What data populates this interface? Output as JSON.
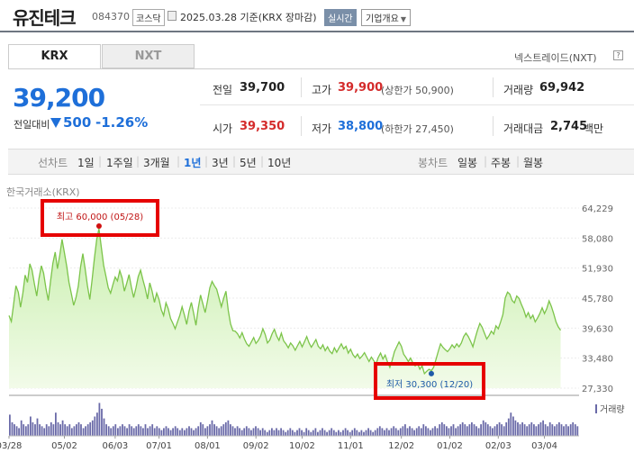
{
  "header": {
    "stock_name": "유진테크",
    "stock_code": "084370",
    "market": "코스닥",
    "date_text": "2025.03.28 기준(KRX 장마감)",
    "realtime": "실시간",
    "company_info": "기업개요"
  },
  "tabs": {
    "krx": "KRX",
    "nxt": "NXT",
    "nextrade": "넥스트레이드(NXT)",
    "help": "?"
  },
  "quote": {
    "price": "39,200",
    "change_label": "전일대비",
    "change": "500",
    "change_pct": "-1.26%"
  },
  "stats": {
    "prev_label": "전일",
    "prev": "39,700",
    "high_label": "고가",
    "high": "39,900",
    "upper_limit": "(상한가 50,900)",
    "volume_label": "거래량",
    "volume": "69,942",
    "open_label": "시가",
    "open": "39,350",
    "low_label": "저가",
    "low": "38,800",
    "lower_limit": "(하한가 27,450)",
    "amount_label": "거래대금",
    "amount": "2,745",
    "amount_unit": "백만"
  },
  "period": {
    "line_label": "선차트",
    "line_options": [
      "1일",
      "1주일",
      "3개월",
      "1년",
      "3년",
      "5년",
      "10년"
    ],
    "selected": "1년",
    "candle_label": "봉차트",
    "candle_options": [
      "일봉",
      "주봉",
      "월봉"
    ]
  },
  "chart_source": "한국거래소(KRX)",
  "colors": {
    "price_down": "#1e6fd9",
    "price_up": "#d42b2b",
    "line": "#7cc44a",
    "fill": "#c9efae",
    "volume": "#6a6aa8"
  },
  "chart_data": {
    "type": "area",
    "y_ticks": [
      "64,229",
      "58,080",
      "51,930",
      "45,780",
      "39,630",
      "33,480",
      "27,330"
    ],
    "y_tick_values": [
      64229,
      58080,
      51930,
      45780,
      39630,
      33480,
      27330
    ],
    "ylim": [
      27330,
      64229
    ],
    "x_ticks": [
      "03/28",
      "05/02",
      "06/03",
      "07/01",
      "08/01",
      "09/02",
      "10/02",
      "11/01",
      "12/02",
      "01/02",
      "02/03",
      "03/04"
    ],
    "x_tick_positions": [
      0,
      24,
      46,
      65,
      86,
      107,
      127,
      148,
      170,
      191,
      212,
      232
    ],
    "n_days": 248,
    "values": [
      42200,
      41000,
      44500,
      48300,
      47000,
      43900,
      46800,
      50500,
      49000,
      52800,
      51500,
      48700,
      46200,
      49800,
      52400,
      50900,
      47800,
      45300,
      49200,
      52900,
      55200,
      51800,
      54600,
      57800,
      55100,
      52300,
      49000,
      46700,
      44300,
      45800,
      48200,
      52100,
      54900,
      51700,
      48300,
      45500,
      49600,
      53900,
      57800,
      60000,
      56200,
      52500,
      50300,
      47900,
      46800,
      48500,
      50100,
      49300,
      51400,
      49900,
      47200,
      48800,
      50600,
      48100,
      45900,
      47900,
      50200,
      51500,
      49600,
      47800,
      45600,
      48900,
      47200,
      44900,
      46800,
      45500,
      43400,
      42200,
      44800,
      43600,
      41600,
      40600,
      39500,
      40900,
      42200,
      44000,
      42300,
      40400,
      43100,
      44900,
      42700,
      40200,
      43700,
      46400,
      44600,
      42800,
      45200,
      47900,
      49200,
      48300,
      47600,
      45800,
      44000,
      45700,
      47200,
      43200,
      40500,
      39100,
      39000,
      38500,
      37600,
      38700,
      37400,
      36400,
      35900,
      36800,
      37700,
      36500,
      37100,
      38000,
      39500,
      38300,
      36600,
      37200,
      38500,
      39400,
      38000,
      37100,
      38600,
      37000,
      36400,
      35600,
      36600,
      36000,
      35100,
      36000,
      36900,
      35800,
      36800,
      37900,
      36600,
      35700,
      36500,
      37300,
      35900,
      35400,
      36200,
      35000,
      35800,
      34900,
      34400,
      35600,
      34700,
      35600,
      36400,
      35400,
      35900,
      34500,
      35300,
      34200,
      33600,
      34300,
      33400,
      33900,
      34600,
      33700,
      32800,
      33700,
      33000,
      32300,
      33600,
      34500,
      33300,
      34100,
      32700,
      31600,
      33000,
      34800,
      35800,
      36800,
      35900,
      34300,
      33600,
      32800,
      33500,
      32500,
      31900,
      32400,
      31200,
      31900,
      30300,
      30800,
      31200,
      30900,
      31600,
      33200,
      34900,
      36400,
      35700,
      35200,
      34800,
      35400,
      36200,
      35600,
      36400,
      35800,
      36600,
      37900,
      38600,
      37900,
      36900,
      35800,
      37600,
      39200,
      40600,
      39800,
      38600,
      37400,
      38100,
      39000,
      38400,
      40100,
      39500,
      40900,
      42400,
      45800,
      47000,
      46600,
      45300,
      44800,
      46200,
      45700,
      44500,
      43400,
      41900,
      42800,
      41600,
      42300,
      40900,
      41700,
      42600,
      43800,
      42600,
      43600,
      45200,
      44100,
      42600,
      40900,
      39900,
      39200
    ],
    "volume_relative": [
      0.55,
      0.35,
      0.3,
      0.25,
      0.2,
      0.4,
      0.3,
      0.25,
      0.3,
      0.5,
      0.35,
      0.3,
      0.45,
      0.3,
      0.25,
      0.2,
      0.3,
      0.25,
      0.35,
      0.3,
      0.6,
      0.35,
      0.3,
      0.4,
      0.3,
      0.25,
      0.3,
      0.2,
      0.25,
      0.3,
      0.35,
      0.3,
      0.2,
      0.25,
      0.3,
      0.35,
      0.4,
      0.5,
      0.6,
      0.85,
      0.7,
      0.45,
      0.3,
      0.25,
      0.2,
      0.25,
      0.3,
      0.2,
      0.25,
      0.3,
      0.25,
      0.2,
      0.3,
      0.25,
      0.2,
      0.25,
      0.3,
      0.25,
      0.2,
      0.3,
      0.2,
      0.25,
      0.3,
      0.2,
      0.25,
      0.2,
      0.15,
      0.2,
      0.25,
      0.2,
      0.15,
      0.2,
      0.25,
      0.2,
      0.15,
      0.2,
      0.15,
      0.2,
      0.25,
      0.2,
      0.15,
      0.2,
      0.25,
      0.35,
      0.3,
      0.2,
      0.25,
      0.3,
      0.4,
      0.3,
      0.25,
      0.2,
      0.25,
      0.3,
      0.35,
      0.4,
      0.3,
      0.25,
      0.2,
      0.25,
      0.2,
      0.15,
      0.2,
      0.25,
      0.2,
      0.15,
      0.2,
      0.25,
      0.2,
      0.15,
      0.2,
      0.15,
      0.1,
      0.15,
      0.2,
      0.15,
      0.2,
      0.15,
      0.2,
      0.15,
      0.1,
      0.15,
      0.2,
      0.15,
      0.1,
      0.15,
      0.2,
      0.15,
      0.1,
      0.2,
      0.15,
      0.1,
      0.15,
      0.2,
      0.1,
      0.15,
      0.2,
      0.15,
      0.1,
      0.15,
      0.2,
      0.15,
      0.1,
      0.15,
      0.1,
      0.15,
      0.2,
      0.15,
      0.1,
      0.15,
      0.2,
      0.15,
      0.1,
      0.15,
      0.1,
      0.15,
      0.2,
      0.15,
      0.1,
      0.15,
      0.2,
      0.25,
      0.2,
      0.15,
      0.2,
      0.15,
      0.2,
      0.25,
      0.2,
      0.15,
      0.2,
      0.25,
      0.3,
      0.2,
      0.25,
      0.2,
      0.15,
      0.2,
      0.25,
      0.2,
      0.3,
      0.25,
      0.2,
      0.15,
      0.2,
      0.25,
      0.2,
      0.3,
      0.35,
      0.3,
      0.25,
      0.2,
      0.25,
      0.3,
      0.2,
      0.25,
      0.3,
      0.35,
      0.3,
      0.25,
      0.3,
      0.35,
      0.3,
      0.25,
      0.2,
      0.3,
      0.4,
      0.35,
      0.3,
      0.25,
      0.2,
      0.25,
      0.3,
      0.35,
      0.3,
      0.25,
      0.35,
      0.45,
      0.6,
      0.5,
      0.4,
      0.35,
      0.3,
      0.35,
      0.3,
      0.25,
      0.3,
      0.35,
      0.3,
      0.25,
      0.3,
      0.35,
      0.4,
      0.3,
      0.25,
      0.35,
      0.3,
      0.25,
      0.3,
      0.35,
      0.3,
      0.25,
      0.3,
      0.25,
      0.3,
      0.35,
      0.3,
      0.25
    ],
    "max_annotation": {
      "label": "최고",
      "value": 60000,
      "value_text": "60,000",
      "date": "(05/28)",
      "index": 39
    },
    "min_annotation": {
      "label": "최저",
      "value": 30300,
      "value_text": "30,300",
      "date": "(12/20)",
      "index": 183
    },
    "volume_legend": "거래량",
    "grid": true
  }
}
